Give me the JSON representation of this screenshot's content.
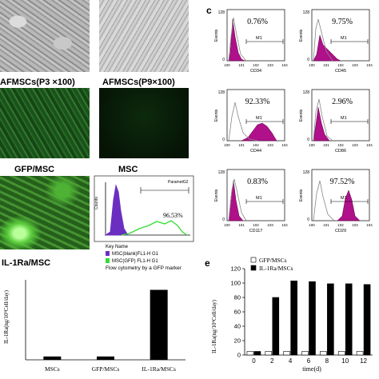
{
  "photo_captions": {
    "afmscs_p3": "AFMSCs(P3 ×100)",
    "afmscs_p9": "AFMSCs(P9×100)",
    "gfp_msc": "GFP/MSC",
    "msc": "MSC",
    "il1ra_msc": "IL-1Ra/MSC"
  },
  "gfp_flow": {
    "percent_label": "96.53%",
    "y_label": "Counts",
    "header_right": "ParametG2",
    "legend_title": "Key Name",
    "legend_items": [
      {
        "label": "MSC(blank)FL1-H   G1",
        "color": "#6a2fc0"
      },
      {
        "label": "MSC(GFP) FL1-H   G1",
        "color": "#33dd33"
      }
    ],
    "caption": "Flow cytometry by a GFP marker",
    "colors": {
      "blank": "#6a2fc0",
      "gfp": "#33dd33"
    }
  },
  "panel_c": {
    "letter": "c",
    "y_label": "Events",
    "gate_label": "M1",
    "ymax_label": "128",
    "histograms": [
      {
        "marker": "CD34",
        "percent": "0.76%"
      },
      {
        "marker": "CD45",
        "percent": "9.75%"
      },
      {
        "marker": "CD44",
        "percent": "92.33%"
      },
      {
        "marker": "CD86",
        "percent": "2.96%"
      },
      {
        "marker": "CD117",
        "percent": "0.83%"
      },
      {
        "marker": "CD29",
        "percent": "97.52%"
      }
    ],
    "colors": {
      "fill": "#b0108a",
      "outline": "#888888"
    }
  },
  "panel_e": {
    "letter": "e",
    "legend": [
      "GFP/MSCs",
      "IL-1Ra/MSCs"
    ]
  },
  "chart_data": [
    {
      "type": "bar",
      "categories": [
        "MSCs",
        "GFP/MSCs",
        "IL-1Ra/MSCs"
      ],
      "values": [
        5,
        5,
        105
      ],
      "ylabel": "IL-1Ra(ng/10⁶Cell/day)",
      "ylim": [
        0,
        120
      ]
    },
    {
      "type": "bar",
      "x": [
        0,
        2,
        4,
        6,
        8,
        10,
        12
      ],
      "series": [
        {
          "name": "GFP/MSCs",
          "values": [
            5,
            5,
            5,
            5,
            5,
            5,
            5
          ]
        },
        {
          "name": "IL-1Ra/MSCs",
          "values": [
            5,
            80,
            103,
            102,
            99,
            99,
            98
          ]
        }
      ],
      "xlabel": "time(d)",
      "ylabel": "IL-1Ra(ng/10⁶Cell/day)",
      "yticks": [
        0,
        20,
        40,
        60,
        80,
        100,
        120
      ],
      "ylim": [
        0,
        120
      ],
      "colors": {
        "GFP/MSCs": "#ffffff",
        "IL-1Ra/MSCs": "#000000"
      }
    }
  ]
}
